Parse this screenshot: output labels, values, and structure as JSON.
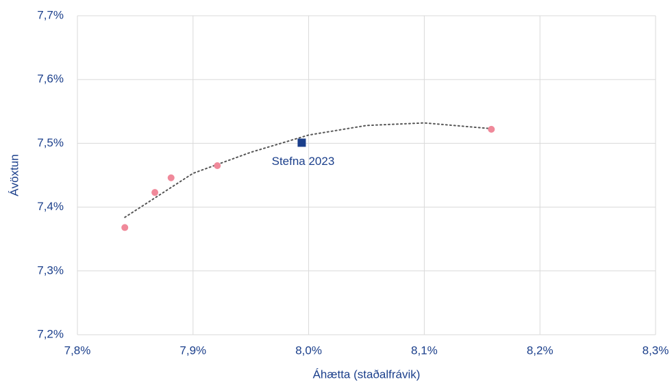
{
  "chart_data": {
    "type": "scatter",
    "x_label": "Áhætta (staðalfrávik)",
    "y_label": "Ávöxtun",
    "xlim": [
      7.8,
      8.3
    ],
    "xticks": [
      {
        "value": 7.8,
        "label": "7,8%"
      },
      {
        "value": 7.9,
        "label": "7,9%"
      },
      {
        "value": 8.0,
        "label": "8,0%"
      },
      {
        "value": 8.1,
        "label": "8,1%"
      },
      {
        "value": 8.2,
        "label": "8,2%"
      },
      {
        "value": 8.3,
        "label": "8,3%"
      }
    ],
    "ylim": [
      7.2,
      7.7
    ],
    "yticks": [
      {
        "value": 7.2,
        "label": "7,2%"
      },
      {
        "value": 7.3,
        "label": "7,3%"
      },
      {
        "value": 7.4,
        "label": "7,4%"
      },
      {
        "value": 7.5,
        "label": "7,5%"
      },
      {
        "value": 7.6,
        "label": "7,6%"
      },
      {
        "value": 7.7,
        "label": "7,7%"
      }
    ],
    "grid": true,
    "series": [
      {
        "color": "#f0899a",
        "x": [
          7.841,
          7.867,
          7.881,
          7.921,
          8.158
        ],
        "values": [
          7.368,
          7.423,
          7.446,
          7.465,
          7.522
        ]
      }
    ],
    "highlight": {
      "label": "Stefna 2023",
      "x": 7.994,
      "y": 7.501,
      "color": "#1b3f8b"
    },
    "trendline": {
      "color": "#555555",
      "x": [
        7.841,
        7.9,
        7.95,
        8.0,
        8.05,
        8.1,
        8.158
      ],
      "values": [
        7.384,
        7.453,
        7.486,
        7.513,
        7.528,
        7.532,
        7.523
      ]
    }
  }
}
